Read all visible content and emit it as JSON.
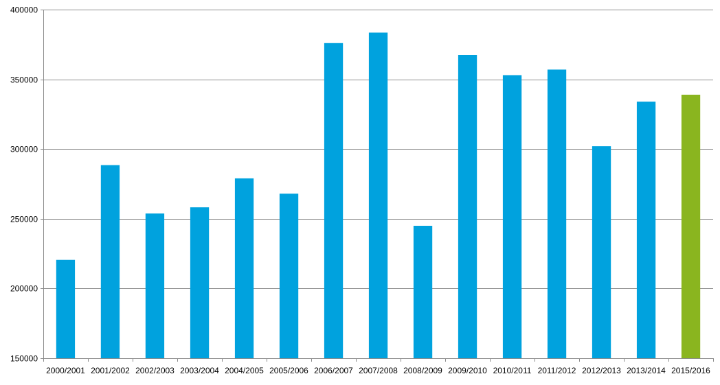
{
  "chart_data": {
    "type": "bar",
    "categories": [
      "2000/2001",
      "2001/2002",
      "2002/2003",
      "2003/2004",
      "2004/2005",
      "2005/2006",
      "2006/2007",
      "2007/2008",
      "2008/2009",
      "2009/2010",
      "2010/2011",
      "2011/2012",
      "2012/2013",
      "2013/2014",
      "2015/2016"
    ],
    "values": [
      220500,
      288500,
      253800,
      258200,
      279000,
      268000,
      376000,
      383500,
      245000,
      367500,
      353000,
      357000,
      302000,
      334000,
      339000
    ],
    "title": "",
    "xlabel": "",
    "ylabel": "",
    "ylim": [
      150000,
      400000
    ],
    "yticks": [
      "150000",
      "200000",
      "250000",
      "300000",
      "350000",
      "400000"
    ],
    "grid": true,
    "legend": "none",
    "colors": {
      "default_bar": "#00A2DE",
      "highlight_bar": "#8AB51F",
      "gridline": "#8C8C8C",
      "axis": "#8C8C8C"
    },
    "highlight_category": "2015/2016"
  }
}
